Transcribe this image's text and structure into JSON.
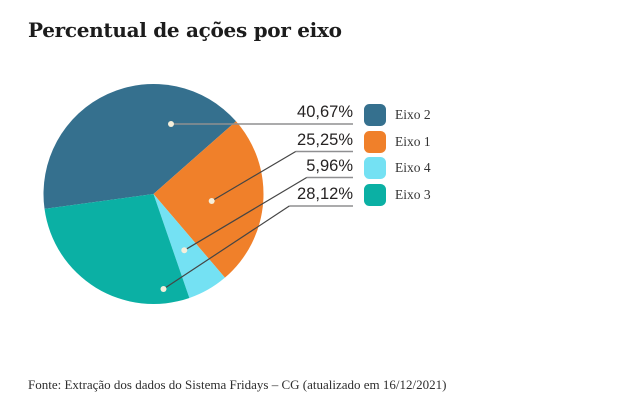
{
  "chart_data": {
    "type": "pie",
    "title": "Percentual de ações por eixo",
    "source_note": "Fonte: Extração dos dados do Sistema Fridays – CG (atualizado em 16/12/2021)",
    "legend_position": "right",
    "direction": "clockwise",
    "start_angle_deg": 262.2,
    "slices": [
      {
        "label": "Eixo 2",
        "value": 40.67,
        "display": "40,67%",
        "color": "#35708E"
      },
      {
        "label": "Eixo 1",
        "value": 25.25,
        "display": "25,25%",
        "color": "#F0802A"
      },
      {
        "label": "Eixo 4",
        "value": 5.96,
        "display": "5,96%",
        "color": "#74E1F3"
      },
      {
        "label": "Eixo 3",
        "value": 28.12,
        "display": "28,12%",
        "color": "#0BB0A4"
      }
    ],
    "colors": {
      "callout_dot": "#F5EFDB",
      "underline": "#8f8f91",
      "diagonal": "#454545",
      "text": "#262323"
    }
  }
}
